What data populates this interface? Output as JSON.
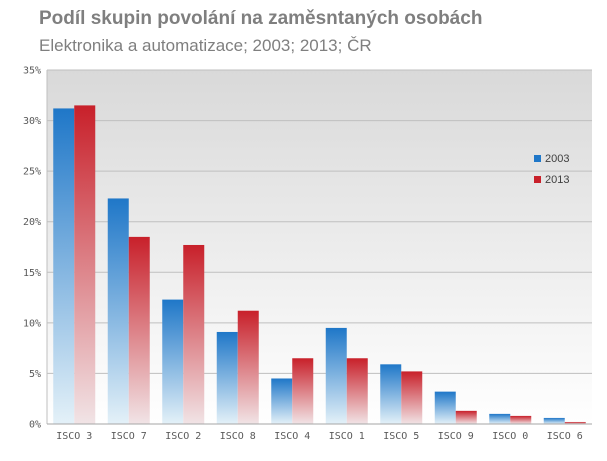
{
  "chart_data": {
    "type": "bar",
    "title": "Podíl skupin povolání na zaměsntaných osobách",
    "subtitle": "Elektronika a automatizace; 2003; 2013; ČR",
    "categories": [
      "ISCO 3",
      "ISCO 7",
      "ISCO 2",
      "ISCO 8",
      "ISCO 4",
      "ISCO 1",
      "ISCO 5",
      "ISCO 9",
      "ISCO 0",
      "ISCO 6"
    ],
    "series": [
      {
        "name": "2003",
        "color": "#1f77c8",
        "values": [
          31.2,
          22.3,
          12.3,
          9.1,
          4.5,
          9.5,
          5.9,
          3.2,
          1.0,
          0.6
        ]
      },
      {
        "name": "2013",
        "color": "#c8202a",
        "values": [
          31.5,
          18.5,
          17.7,
          11.2,
          6.5,
          6.5,
          5.2,
          1.3,
          0.8,
          0.2
        ]
      }
    ],
    "ylim": [
      0,
      35
    ],
    "yticks": [
      "0%",
      "5%",
      "10%",
      "15%",
      "20%",
      "25%",
      "30%",
      "35%"
    ],
    "grid": true,
    "legend": "right"
  }
}
